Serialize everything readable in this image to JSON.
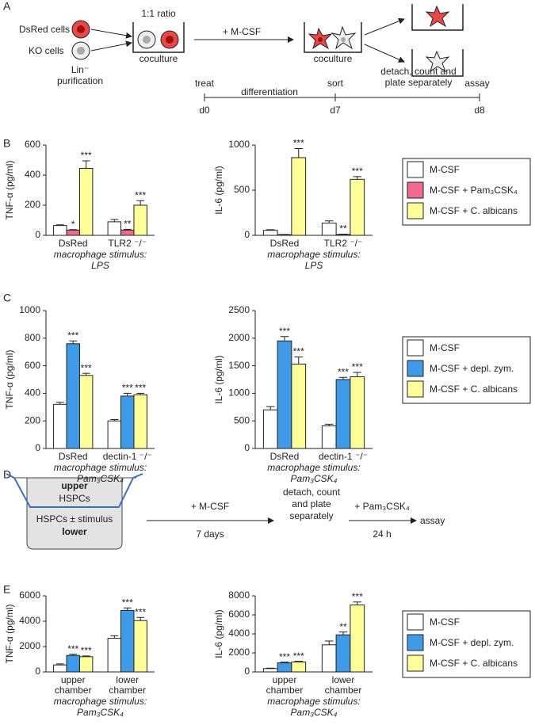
{
  "panel_labels": [
    "A",
    "B",
    "C",
    "D",
    "E"
  ],
  "panel_a": {
    "dsred_cells": "DsRed cells",
    "ko_cells": "KO cells",
    "purification": [
      "Lin⁻",
      "purification"
    ],
    "ratio": "1:1 ratio",
    "coculture_1": "coculture",
    "treatment": "+ M-CSF",
    "coculture_2": "coculture",
    "timeline": {
      "treat": "treat",
      "differentiation": "differentiation",
      "sort": "sort",
      "detach": [
        "detach, count and",
        "plate separately"
      ],
      "assay": "assay",
      "d0": "d0",
      "d7": "d7",
      "d8": "d8"
    }
  },
  "panel_d": {
    "upper": "upper",
    "upper_cells": "HSPCs",
    "lower_cells": "HSPCs ± stimulus",
    "lower": "lower",
    "treatment": "+ M-CSF",
    "duration_1": "7 days",
    "detach": [
      "detach, count",
      "and plate",
      "separately"
    ],
    "stimulus": "+ Pam₃CSK₄",
    "duration_2": "24 h",
    "assay": "assay"
  },
  "chart_data": [
    {
      "type": "bar",
      "ylabel": "TNF-α (pg/ml)",
      "categories": [
        "DsRed",
        "TLR2 ⁻/⁻"
      ],
      "xlabel": [
        "macrophage stimulus:",
        "LPS"
      ],
      "ylim": [
        0,
        600
      ],
      "yticks": [
        0,
        200,
        400,
        600
      ],
      "series": [
        {
          "color": "#ffffff",
          "values": [
            65,
            90
          ],
          "errors": [
            5,
            15
          ],
          "stars": [
            null,
            null
          ]
        },
        {
          "color": "#ee6b8e",
          "values": [
            35,
            35
          ],
          "errors": [
            3,
            5
          ],
          "stars": [
            "*",
            "**"
          ]
        },
        {
          "color": "#ffff99",
          "values": [
            445,
            200
          ],
          "errors": [
            50,
            30
          ],
          "stars": [
            "***",
            "***"
          ]
        }
      ]
    },
    {
      "type": "bar",
      "ylabel": "IL-6 (pg/ml)",
      "categories": [
        "DsRed",
        "TLR2 ⁻/⁻"
      ],
      "xlabel": [
        "macrophage stimulus:",
        "LPS"
      ],
      "ylim": [
        0,
        1000
      ],
      "yticks": [
        0,
        500,
        1000
      ],
      "legend": "right",
      "series": [
        {
          "name": "M-CSF",
          "color": "#ffffff",
          "values": [
            55,
            135
          ],
          "errors": [
            8,
            25
          ],
          "stars": [
            null,
            null
          ]
        },
        {
          "name": "M-CSF + Pam₃CSK₄",
          "color": "#ee6b8e",
          "values": [
            8,
            10
          ],
          "errors": [
            2,
            3
          ],
          "stars": [
            null,
            "**"
          ]
        },
        {
          "name": "M-CSF + C. albicans",
          "color": "#ffff99",
          "values": [
            860,
            620
          ],
          "errors": [
            100,
            30
          ],
          "stars": [
            "***",
            "***"
          ]
        }
      ]
    },
    {
      "type": "bar",
      "ylabel": "TNF-α (pg/ml)",
      "categories": [
        "DsRed",
        "dectin-1 ⁻/⁻"
      ],
      "xlabel": [
        "macrophage stimulus:",
        "Pam₃CSK₄"
      ],
      "ylim": [
        0,
        1000
      ],
      "yticks": [
        0,
        200,
        400,
        600,
        800,
        1000
      ],
      "series": [
        {
          "color": "#ffffff",
          "values": [
            320,
            200
          ],
          "errors": [
            15,
            10
          ],
          "stars": [
            null,
            null
          ]
        },
        {
          "color": "#3f9be8",
          "values": [
            760,
            380
          ],
          "errors": [
            20,
            20
          ],
          "stars": [
            "***",
            "***"
          ]
        },
        {
          "color": "#ffff99",
          "values": [
            530,
            390
          ],
          "errors": [
            15,
            10
          ],
          "stars": [
            "***",
            "***"
          ]
        }
      ]
    },
    {
      "type": "bar",
      "ylabel": "IL-6 (pg/ml)",
      "categories": [
        "DsRed",
        "dectin-1 ⁻/⁻"
      ],
      "xlabel": [
        "macrophage stimulus:",
        "Pam₃CSK₄"
      ],
      "ylim": [
        0,
        2500
      ],
      "yticks": [
        0,
        500,
        1000,
        1500,
        2000,
        2500
      ],
      "legend": "right",
      "series": [
        {
          "name": "M-CSF",
          "color": "#ffffff",
          "values": [
            700,
            410
          ],
          "errors": [
            60,
            30
          ],
          "stars": [
            null,
            null
          ]
        },
        {
          "name": "M-CSF + depl. zym.",
          "color": "#3f9be8",
          "values": [
            1950,
            1250
          ],
          "errors": [
            80,
            40
          ],
          "stars": [
            "***",
            "***"
          ]
        },
        {
          "name": "M-CSF + C. albicans",
          "color": "#ffff99",
          "values": [
            1530,
            1300
          ],
          "errors": [
            130,
            80
          ],
          "stars": [
            "***",
            "***"
          ]
        }
      ]
    },
    {
      "type": "bar",
      "ylabel": "TNF-α (pg/ml)",
      "categories": [
        "upper chamber",
        "lower chamber"
      ],
      "xlabel": [
        "macrophage stimulus:",
        "Pam₃CSK₄"
      ],
      "ylim": [
        0,
        6000
      ],
      "yticks": [
        0,
        2000,
        4000,
        6000
      ],
      "series": [
        {
          "color": "#ffffff",
          "values": [
            550,
            2650
          ],
          "errors": [
            80,
            200
          ],
          "stars": [
            null,
            null
          ]
        },
        {
          "color": "#3f9be8",
          "values": [
            1300,
            4850
          ],
          "errors": [
            100,
            200
          ],
          "stars": [
            "***",
            "***"
          ]
        },
        {
          "color": "#ffff99",
          "values": [
            1200,
            4050
          ],
          "errors": [
            60,
            250
          ],
          "stars": [
            "***",
            "***"
          ]
        }
      ]
    },
    {
      "type": "bar",
      "ylabel": "IL-6 (pg/ml)",
      "categories": [
        "upper chamber",
        "lower chamber"
      ],
      "xlabel": [
        "macrophage stimulus:",
        "Pam₃CSK₄"
      ],
      "ylim": [
        0,
        8000
      ],
      "yticks": [
        0,
        2000,
        4000,
        6000,
        8000
      ],
      "legend": "right",
      "series": [
        {
          "name": "M-CSF",
          "color": "#ffffff",
          "values": [
            350,
            2850
          ],
          "errors": [
            50,
            400
          ],
          "stars": [
            null,
            null
          ]
        },
        {
          "name": "M-CSF + depl. zym.",
          "color": "#3f9be8",
          "values": [
            950,
            3900
          ],
          "errors": [
            80,
            300
          ],
          "stars": [
            "***",
            "**"
          ]
        },
        {
          "name": "M-CSF + C. albicans",
          "color": "#ffff99",
          "values": [
            1050,
            7050
          ],
          "errors": [
            60,
            300
          ],
          "stars": [
            "***",
            "***"
          ]
        }
      ]
    }
  ]
}
